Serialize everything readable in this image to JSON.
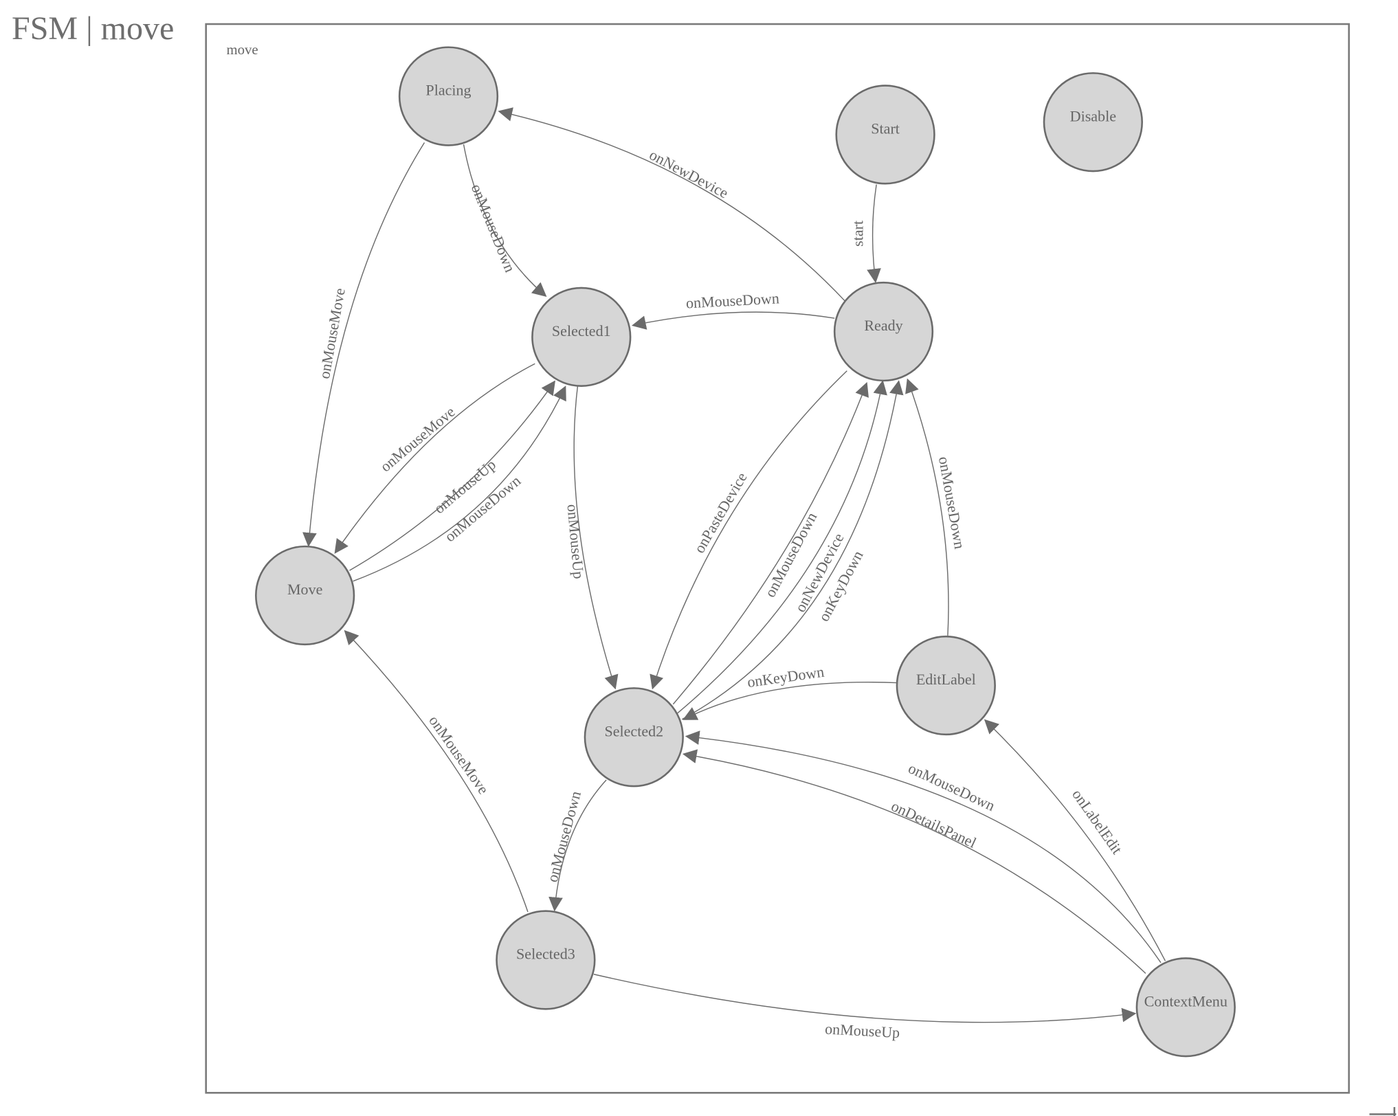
{
  "header": {
    "title": "FSM | move"
  },
  "diagram": {
    "frame_label": "move",
    "colors": {
      "node_fill": "#d6d6d6",
      "stroke": "#6b6b6b",
      "text": "#666666"
    },
    "states": [
      {
        "id": "Placing",
        "label": "Placing"
      },
      {
        "id": "Start",
        "label": "Start"
      },
      {
        "id": "Disable",
        "label": "Disable"
      },
      {
        "id": "Selected1",
        "label": "Selected1"
      },
      {
        "id": "Ready",
        "label": "Ready"
      },
      {
        "id": "Move",
        "label": "Move"
      },
      {
        "id": "EditLabel",
        "label": "EditLabel"
      },
      {
        "id": "Selected2",
        "label": "Selected2"
      },
      {
        "id": "Selected3",
        "label": "Selected3"
      },
      {
        "id": "ContextMenu",
        "label": "ContextMenu"
      }
    ],
    "transitions": [
      {
        "from": "Ready",
        "to": "Placing",
        "label": "onNewDevice"
      },
      {
        "from": "Placing",
        "to": "Selected1",
        "label": "onMouseDown"
      },
      {
        "from": "Placing",
        "to": "Move",
        "label": "onMouseMove"
      },
      {
        "from": "Start",
        "to": "Ready",
        "label": "start"
      },
      {
        "from": "Ready",
        "to": "Selected1",
        "label": "onMouseDown"
      },
      {
        "from": "Selected1",
        "to": "Move",
        "label": "onMouseMove"
      },
      {
        "from": "Move",
        "to": "Selected1",
        "label": "onMouseUp"
      },
      {
        "from": "Move",
        "to": "Selected1",
        "label": "onMouseDown"
      },
      {
        "from": "Selected1",
        "to": "Selected2",
        "label": "onMouseUp"
      },
      {
        "from": "Ready",
        "to": "Selected2",
        "label": "onPasteDevice"
      },
      {
        "from": "Selected2",
        "to": "Ready",
        "label": "onMouseDown"
      },
      {
        "from": "Selected2",
        "to": "Ready",
        "label": "onNewDevice"
      },
      {
        "from": "Selected2",
        "to": "Ready",
        "label": "onKeyDown"
      },
      {
        "from": "EditLabel",
        "to": "Ready",
        "label": "onMouseDown"
      },
      {
        "from": "EditLabel",
        "to": "Selected2",
        "label": "onKeyDown"
      },
      {
        "from": "ContextMenu",
        "to": "Selected2",
        "label": "onMouseDown"
      },
      {
        "from": "ContextMenu",
        "to": "Selected2",
        "label": "onDetailsPanel"
      },
      {
        "from": "ContextMenu",
        "to": "EditLabel",
        "label": "onLabelEdit"
      },
      {
        "from": "Selected2",
        "to": "Selected3",
        "label": "onMouseDown"
      },
      {
        "from": "Selected3",
        "to": "Move",
        "label": "onMouseMove"
      },
      {
        "from": "Selected3",
        "to": "ContextMenu",
        "label": "onMouseUp"
      }
    ]
  }
}
